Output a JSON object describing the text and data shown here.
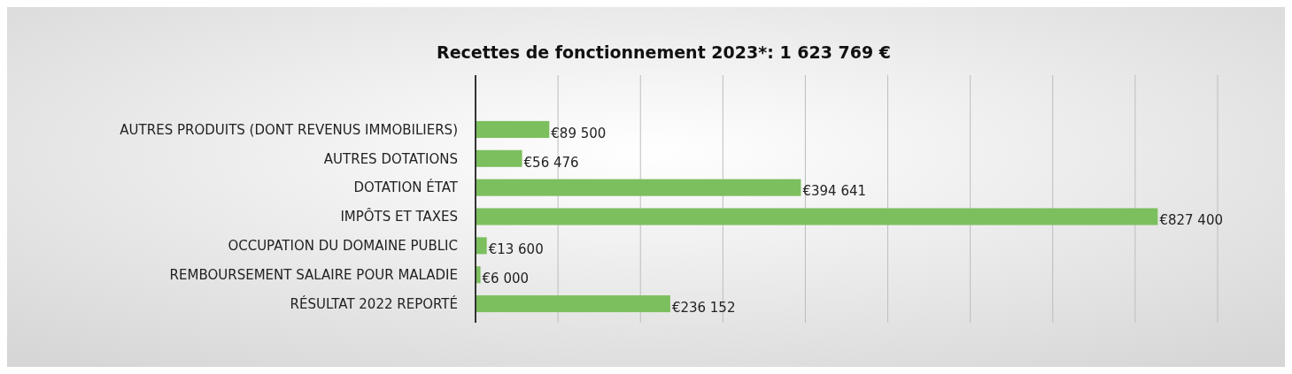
{
  "chart_data": {
    "type": "bar",
    "orientation": "horizontal",
    "title": "Recettes de fonctionnement 2023*: 1 623 769 €",
    "categories": [
      "AUTRES PRODUITS (DONT REVENUS IMMOBILIERS)",
      "AUTRES DOTATIONS",
      "DOTATION ÉTAT",
      "IMPÔTS ET TAXES",
      "OCCUPATION DU DOMAINE PUBLIC",
      "REMBOURSEMENT SALAIRE POUR MALADIE",
      "RÉSULTAT 2022 REPORTÉ"
    ],
    "values": [
      89500,
      56476,
      394641,
      827400,
      13600,
      6000,
      236152
    ],
    "value_labels": [
      "€89 500",
      "€56 476",
      "€394 641",
      "€827 400",
      "€13 600",
      "€6 000",
      "€236 152"
    ],
    "color": "#7cbf5e",
    "xlim": [
      0,
      900000
    ],
    "xticks": [
      {
        "value": 0,
        "label": null
      },
      {
        "value": 100000,
        "label": null
      },
      {
        "value": 200000,
        "label": null
      },
      {
        "value": 300000,
        "label": null
      },
      {
        "value": 400000,
        "label": null
      },
      {
        "value": 500000,
        "label": null
      },
      {
        "value": 600000,
        "label": null
      },
      {
        "value": 700000,
        "label": null
      },
      {
        "value": 800000,
        "label": null
      },
      {
        "value": 900000,
        "label": null
      }
    ],
    "grid": "x",
    "tick_labels": "y"
  }
}
